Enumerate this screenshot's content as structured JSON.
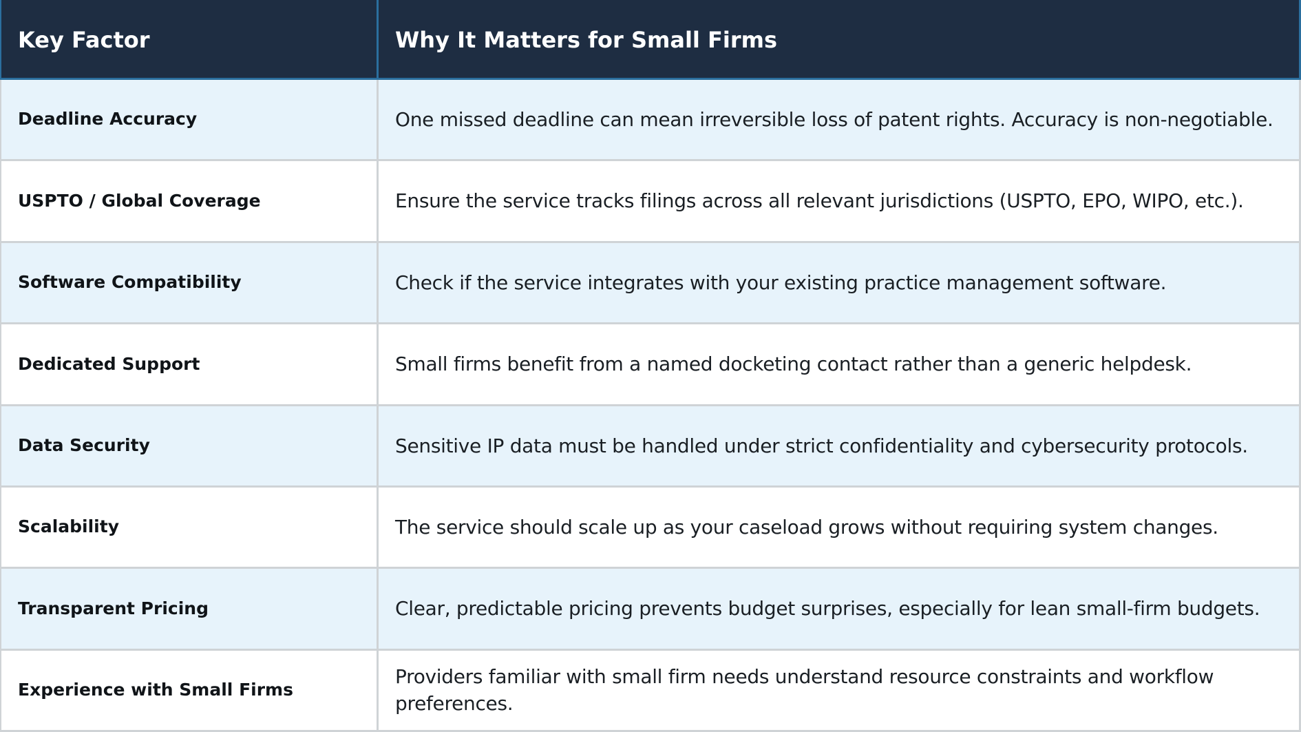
{
  "header": {
    "col1": "Key Factor",
    "col2": "Why It Matters for Small Firms"
  },
  "rows": [
    {
      "factor": "Deadline Accuracy",
      "description": "One missed deadline can mean irreversible loss of patent rights. Accuracy is non-negotiable."
    },
    {
      "factor": "USPTO / Global Coverage",
      "description": "Ensure the service tracks filings across all relevant jurisdictions (USPTO, EPO, WIPO, etc.)."
    },
    {
      "factor": "Software Compatibility",
      "description": "Check if the service integrates with your existing practice management software."
    },
    {
      "factor": "Dedicated Support",
      "description": "Small firms benefit from a named docketing contact rather than a generic helpdesk."
    },
    {
      "factor": "Data Security",
      "description": "Sensitive IP data must be handled under strict confidentiality and cybersecurity protocols."
    },
    {
      "factor": "Scalability",
      "description": "The service should scale up as your caseload grows without requiring system changes."
    },
    {
      "factor": "Transparent Pricing",
      "description": "Clear, predictable pricing prevents budget surprises, especially for lean small-firm budgets."
    },
    {
      "factor": "Experience with Small Firms",
      "description": "Providers familiar with small firm needs understand resource constraints and workflow preferences."
    }
  ],
  "colors": {
    "header_bg": "#1e2d42",
    "header_border": "#2b6f9e",
    "row_alt_bg": "#e7f3fb",
    "row_bg": "#ffffff",
    "grid_line": "#cfd3d6"
  }
}
